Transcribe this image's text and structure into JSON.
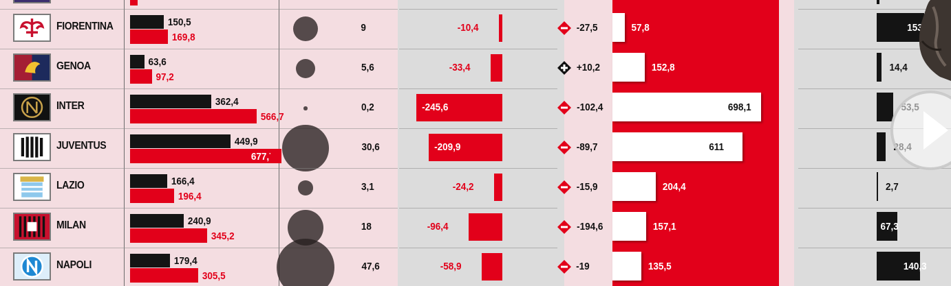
{
  "colors": {
    "panel_pink": "#f4dde1",
    "panel_grey": "#dcdcdc",
    "panel_red": "#e2001a",
    "bar_black": "#141414",
    "bar_red": "#e2001a",
    "bar_white": "#ffffff",
    "circle": "#4a4040"
  },
  "chart_data": {
    "type": "table",
    "rows": [
      {
        "team": "FIORENTINA",
        "bar_black": 150.5,
        "bar_red": 169.8,
        "circle": 9,
        "neg_bar": -10.4,
        "sign": "minus",
        "delta": "-27,5",
        "white_bar": 57.8,
        "black_bar": 153
      },
      {
        "team": "GENOA",
        "bar_black": 63.6,
        "bar_red": 97.2,
        "circle": 5.6,
        "neg_bar": -33.4,
        "sign": "plus",
        "delta": "+10,2",
        "white_bar": 152.8,
        "black_bar": 14.4
      },
      {
        "team": "INTER",
        "bar_black": 362.4,
        "bar_red": 566.7,
        "circle": 0.2,
        "neg_bar": -245.6,
        "sign": "minus",
        "delta": "-102,4",
        "white_bar": 698.1,
        "black_bar": 53.5
      },
      {
        "team": "JUVENTUS",
        "bar_black": 449.9,
        "bar_red": 677.7,
        "circle": 30.6,
        "neg_bar": -209.9,
        "sign": "minus",
        "delta": "-89,7",
        "white_bar": 611,
        "black_bar": 28.4
      },
      {
        "team": "LAZIO",
        "bar_black": 166.4,
        "bar_red": 196.4,
        "circle": 3.1,
        "neg_bar": -24.2,
        "sign": "minus",
        "delta": "-15,9",
        "white_bar": 204.4,
        "black_bar": 2.7
      },
      {
        "team": "MILAN",
        "bar_black": 240.9,
        "bar_red": 345.2,
        "circle": 18,
        "neg_bar": -96.4,
        "sign": "minus",
        "delta": "-194,6",
        "white_bar": 157.1,
        "black_bar": 67.3
      },
      {
        "team": "NAPOLI",
        "bar_black": 179.4,
        "bar_red": 305.5,
        "circle": 47.6,
        "neg_bar": -58.9,
        "sign": "minus",
        "delta": "-19",
        "white_bar": 135.5,
        "black_bar": 140.3
      }
    ],
    "labels": {
      "bar_black": [
        "150,5",
        "63,6",
        "362,4",
        "449,9",
        "166,4",
        "240,9",
        "179,4"
      ],
      "bar_red": [
        "169,8",
        "97,2",
        "566,7",
        "677,7",
        "196,4",
        "345,2",
        "305,5"
      ],
      "circle": [
        "9",
        "5,6",
        "0,2",
        "30,6",
        "3,1",
        "18",
        "47,6"
      ],
      "neg_bar": [
        "-10,4",
        "-33,4",
        "-245,6",
        "-209,9",
        "-24,2",
        "-96,4",
        "-58,9"
      ],
      "white_bar": [
        "57,8",
        "152,8",
        "698,1",
        "611",
        "204,4",
        "157,1",
        "135,5"
      ],
      "black_bar": [
        "153",
        "14,4",
        "53,5",
        "28,4",
        "2,7",
        "67,3",
        "140,3"
      ]
    }
  }
}
